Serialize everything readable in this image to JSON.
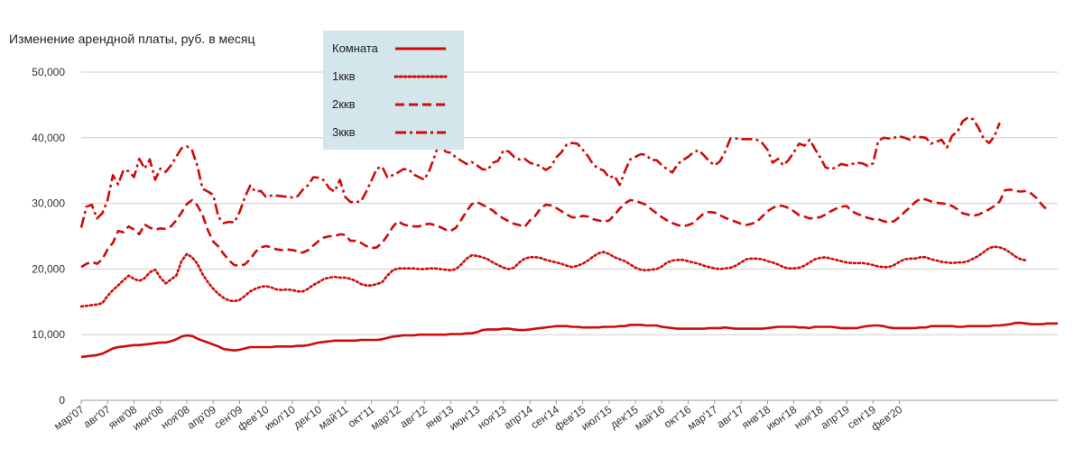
{
  "chart_data": {
    "type": "line",
    "title": "Изменение арендной платы, руб. в месяц",
    "xlabel": "",
    "ylabel": "",
    "ylim": [
      0,
      50000
    ],
    "y_ticks": [
      "0",
      "10,000",
      "20,000",
      "30,000",
      "40,000",
      "50,000"
    ],
    "grid": true,
    "legend_position": "top-center",
    "colors": {
      "series": "#d10a0a",
      "legend_bg": "#d2e6ec",
      "grid": "#cfcfcf"
    },
    "x_tick_labels": [
      "мар'07",
      "авг'07",
      "янв'08",
      "июн'08",
      "ноя'08",
      "апр'09",
      "сен'09",
      "фев'10",
      "июл'10",
      "дек'10",
      "май'11",
      "окт'11",
      "мар'12",
      "авг'12",
      "янв'13",
      "июн'13",
      "ноя'13",
      "апр'14",
      "сен'14",
      "фев'15",
      "июл'15",
      "дек'15",
      "май'16",
      "окт'16",
      "мар'17",
      "авг'17",
      "янв'18",
      "июн'18",
      "ноя'18",
      "апр'19",
      "сен'19",
      "фев'20"
    ],
    "x_start": "2007-03",
    "series": [
      {
        "name": "Комната",
        "style": "solid",
        "values": [
          6600,
          6700,
          6800,
          6900,
          7100,
          7500,
          7900,
          8100,
          8200,
          8300,
          8400,
          8400,
          8500,
          8600,
          8700,
          8800,
          8800,
          9000,
          9300,
          9700,
          9900,
          9800,
          9400,
          9100,
          8800,
          8500,
          8200,
          7800,
          7700,
          7600,
          7700,
          7900,
          8100,
          8100,
          8100,
          8100,
          8100,
          8200,
          8200,
          8200,
          8200,
          8300,
          8300,
          8400,
          8600,
          8800,
          8900,
          9000,
          9100,
          9100,
          9100,
          9100,
          9100,
          9200,
          9200,
          9200,
          9200,
          9300,
          9500,
          9700,
          9800,
          9900,
          9900,
          9900,
          10000,
          10000,
          10000,
          10000,
          10000,
          10000,
          10100,
          10100,
          10100,
          10200,
          10200,
          10400,
          10700,
          10800,
          10800,
          10800,
          10900,
          10900,
          10800,
          10700,
          10700,
          10800,
          10900,
          11000,
          11100,
          11200,
          11300,
          11300,
          11300,
          11200,
          11200,
          11100,
          11100,
          11100,
          11100,
          11200,
          11200,
          11200,
          11300,
          11300,
          11500,
          11500,
          11500,
          11400,
          11400,
          11400,
          11200,
          11100,
          11000,
          10900,
          10900,
          10900,
          10900,
          10900,
          10900,
          11000,
          11000,
          11000,
          11100,
          11000,
          10900,
          10900,
          10900,
          10900,
          10900,
          10900,
          11000,
          11100,
          11200,
          11200,
          11200,
          11200,
          11100,
          11100,
          11000,
          11200,
          11200,
          11200,
          11200,
          11100,
          11000,
          11000,
          11000,
          11000,
          11200,
          11300,
          11400,
          11400,
          11300,
          11100,
          11000,
          11000,
          11000,
          11000,
          11000,
          11100,
          11100,
          11300,
          11300,
          11300,
          11300,
          11300,
          11200,
          11200,
          11300,
          11300,
          11300,
          11300,
          11300,
          11400,
          11400,
          11500,
          11600,
          11800,
          11800,
          11700,
          11600,
          11600,
          11600,
          11700,
          11700,
          11700
        ]
      },
      {
        "name": "1ккв",
        "style": "dotted",
        "values": [
          14300,
          14400,
          14500,
          14600,
          14800,
          15900,
          16800,
          17500,
          18300,
          19000,
          18500,
          18200,
          18600,
          19500,
          19900,
          18700,
          17800,
          18400,
          19000,
          21200,
          22300,
          21800,
          20800,
          19200,
          18000,
          17000,
          16200,
          15600,
          15200,
          15100,
          15300,
          15900,
          16600,
          17000,
          17300,
          17400,
          17200,
          16900,
          16800,
          16900,
          16800,
          16600,
          16600,
          17000,
          17600,
          18000,
          18500,
          18700,
          18800,
          18700,
          18700,
          18500,
          18200,
          17700,
          17500,
          17500,
          17700,
          18000,
          19000,
          19800,
          20100,
          20100,
          20100,
          20100,
          20000,
          20000,
          20100,
          20100,
          20000,
          19900,
          19800,
          20000,
          20700,
          21600,
          22100,
          22000,
          21800,
          21500,
          21000,
          20600,
          20200,
          20000,
          20200,
          21000,
          21600,
          21800,
          21800,
          21700,
          21400,
          21200,
          21000,
          20800,
          20500,
          20300,
          20500,
          20800,
          21300,
          21900,
          22400,
          22600,
          22300,
          21800,
          21500,
          21200,
          20700,
          20200,
          19900,
          19800,
          19900,
          20000,
          20400,
          21000,
          21300,
          21400,
          21400,
          21200,
          21000,
          20800,
          20500,
          20300,
          20100,
          20000,
          20100,
          20200,
          20500,
          21000,
          21500,
          21600,
          21600,
          21500,
          21200,
          21000,
          20700,
          20300,
          20100,
          20100,
          20200,
          20500,
          21000,
          21500,
          21700,
          21800,
          21600,
          21400,
          21200,
          21000,
          20900,
          20900,
          20900,
          20800,
          20600,
          20400,
          20300,
          20300,
          20600,
          21100,
          21500,
          21600,
          21600,
          21800,
          21800,
          21500,
          21300,
          21100,
          21000,
          20900,
          21000,
          21000,
          21200,
          21600,
          22000,
          22600,
          23200,
          23400,
          23300,
          23000,
          22500,
          21900,
          21500,
          21300
        ]
      },
      {
        "name": "2ккв",
        "style": "dashed",
        "values": [
          20300,
          20800,
          21100,
          20800,
          21500,
          23000,
          24000,
          25800,
          25600,
          26500,
          26000,
          25300,
          26800,
          26300,
          26000,
          26200,
          26100,
          26500,
          27400,
          28600,
          29900,
          30500,
          29700,
          28200,
          25900,
          24200,
          23400,
          22300,
          21300,
          20600,
          20500,
          20700,
          21500,
          22600,
          23300,
          23500,
          23300,
          23000,
          22900,
          23000,
          22900,
          22700,
          22500,
          22900,
          23600,
          24300,
          24800,
          25000,
          25000,
          25300,
          25200,
          24300,
          24300,
          24000,
          23500,
          23200,
          23300,
          24000,
          25100,
          26400,
          27300,
          26800,
          26600,
          26500,
          26500,
          26800,
          26900,
          26700,
          26400,
          26000,
          25800,
          26300,
          27500,
          28800,
          29900,
          30200,
          29800,
          29400,
          28900,
          28200,
          27700,
          27300,
          26900,
          26700,
          26400,
          27400,
          28100,
          29200,
          29800,
          29700,
          29300,
          28800,
          28300,
          27900,
          27800,
          28100,
          28000,
          27600,
          27400,
          27200,
          27400,
          28200,
          29200,
          30000,
          30500,
          30400,
          30100,
          29800,
          29100,
          28500,
          27900,
          27400,
          27000,
          26700,
          26500,
          26700,
          27000,
          27800,
          28500,
          28700,
          28600,
          28200,
          27800,
          27500,
          27200,
          26900,
          26700,
          26900,
          27200,
          28000,
          28800,
          29300,
          29700,
          29600,
          29300,
          28800,
          28200,
          28000,
          27700,
          27800,
          27900,
          28300,
          28800,
          29200,
          29500,
          29600,
          28800,
          28400,
          28100,
          27800,
          27600,
          27600,
          27300,
          27100,
          27300,
          27900,
          28700,
          29400,
          30200,
          30700,
          30600,
          30300,
          30100,
          30000,
          29900,
          29600,
          29100,
          28500,
          28300,
          28100,
          28300,
          28700,
          29100,
          29600,
          30300,
          32000,
          32100,
          31900,
          31800,
          31900,
          31500,
          30800,
          29800,
          29000
        ]
      },
      {
        "name": "3ккв",
        "style": "dashdot",
        "values": [
          26300,
          29500,
          29800,
          27700,
          28500,
          30500,
          34300,
          32900,
          35100,
          34900,
          34000,
          36800,
          35300,
          36700,
          33600,
          35300,
          34800,
          35800,
          37100,
          38400,
          38700,
          38100,
          35700,
          32200,
          31800,
          31300,
          27900,
          27000,
          27200,
          27100,
          28700,
          30900,
          32700,
          31800,
          31900,
          31000,
          31200,
          31200,
          31100,
          31000,
          30900,
          31100,
          32100,
          32800,
          34000,
          33900,
          33500,
          32300,
          31800,
          33600,
          31000,
          30200,
          30200,
          30300,
          31800,
          33500,
          35300,
          35600,
          34000,
          34300,
          34700,
          35200,
          35200,
          34400,
          34000,
          33600,
          35100,
          37300,
          39700,
          37900,
          37700,
          37000,
          36500,
          36000,
          36300,
          35800,
          35200,
          35100,
          36200,
          36500,
          38100,
          37900,
          37100,
          36700,
          36800,
          36200,
          35900,
          35700,
          35100,
          35600,
          37000,
          37800,
          39000,
          39200,
          39100,
          38200,
          37200,
          35900,
          35300,
          35000,
          33900,
          34200,
          32800,
          34900,
          36700,
          37100,
          37500,
          37400,
          36600,
          36600,
          35800,
          35200,
          34700,
          36000,
          36600,
          37100,
          37800,
          38100,
          37300,
          36400,
          35800,
          36400,
          37900,
          39900,
          39900,
          39800,
          39800,
          39800,
          39700,
          39200,
          38200,
          36200,
          36800,
          35800,
          36600,
          37800,
          39100,
          38800,
          39700,
          38300,
          37000,
          35500,
          35200,
          35500,
          36000,
          35800,
          36000,
          36200,
          36100,
          35700,
          36100,
          39500,
          40000,
          39900,
          40000,
          40200,
          40000,
          39700,
          40200,
          40100,
          40000,
          39100,
          39400,
          39700,
          38500,
          40300,
          40900,
          42500,
          43100,
          42800,
          41500,
          39800,
          39200,
          40200,
          42300
        ]
      }
    ]
  }
}
